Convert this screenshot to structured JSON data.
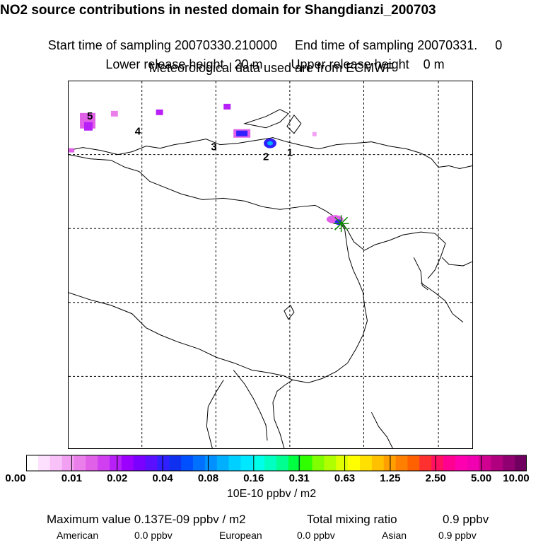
{
  "header": {
    "title": "NO2 source contributions in nested domain for Shangdianzi_200703",
    "start_label": "Start time of sampling 20070330.210000",
    "end_label": "End time of sampling 20070331.     0",
    "lower_label": "Lower release height   20 m",
    "upper_label": "Upper release height    0 m",
    "met_label": "Meteorological data used are from ECMWF"
  },
  "map": {
    "labels": [
      "1",
      "2",
      "3",
      "4",
      "5"
    ]
  },
  "colorbar": {
    "ticks": [
      "0.00",
      "0.01",
      "0.02",
      "0.04",
      "0.08",
      "0.16",
      "0.31",
      "0.63",
      "1.25",
      "2.50",
      "5.00",
      "10.00"
    ],
    "units": "10E-10 ppbv / m2",
    "colors": [
      "#ffffff",
      "#fde0fd",
      "#f8c2f8",
      "#f2a0f2",
      "#ea7eea",
      "#e060e8",
      "#d040f0",
      "#b820f8",
      "#9b00ff",
      "#7a00ff",
      "#5a10ff",
      "#3020ff",
      "#1030f0",
      "#0050ff",
      "#0070ff",
      "#0090ff",
      "#00b0ff",
      "#00d0ff",
      "#00e8ff",
      "#00ffe8",
      "#00ffc0",
      "#00ff90",
      "#00ff40",
      "#30ff00",
      "#80ff00",
      "#b0ff00",
      "#e0ff00",
      "#ffff00",
      "#ffe000",
      "#ffc000",
      "#ffa000",
      "#ff8000",
      "#ff6000",
      "#ff3030",
      "#ff1060",
      "#ff0090",
      "#ff00b0",
      "#f000b0",
      "#d00090",
      "#b00080",
      "#900070",
      "#700060"
    ]
  },
  "stats": {
    "max_label": "Maximum value  0.137E-09 ppbv / m2",
    "total_label": "Total mixing ratio",
    "total_value": "0.9 ppbv",
    "american_label": "American",
    "american_value": "0.0 ppbv",
    "european_label": "European",
    "european_value": "0.0 ppbv",
    "asian_label": "Asian",
    "asian_value": "0.9 ppbv"
  }
}
